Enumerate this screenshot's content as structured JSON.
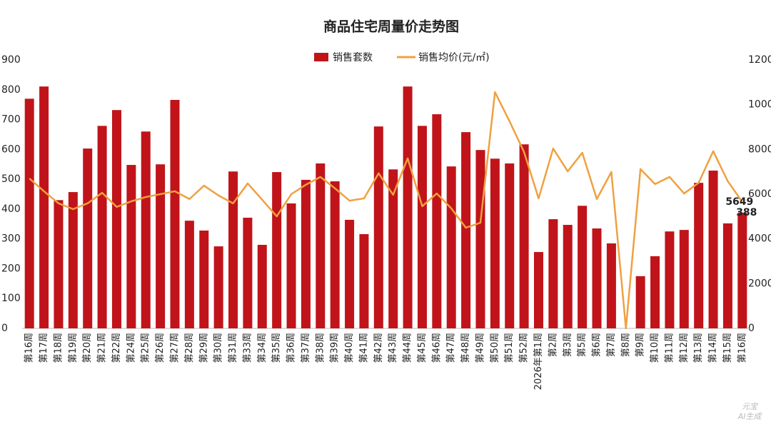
{
  "chart_data": {
    "type": "bar_line",
    "title": "商品住宅周量价走势图",
    "categories": [
      "第16周",
      "第17周",
      "第18周",
      "第19周",
      "第20周",
      "第21周",
      "第22周",
      "第24周",
      "第25周",
      "第26周",
      "第27周",
      "第28周",
      "第29周",
      "第30周",
      "第31周",
      "第33周",
      "第34周",
      "第35周",
      "第36周",
      "第37周",
      "第38周",
      "第39周",
      "第40周",
      "第41周",
      "第42周",
      "第43周",
      "第44周",
      "第45周",
      "第46周",
      "第47周",
      "第48周",
      "第49周",
      "第50周",
      "第51周",
      "第52周",
      "2026年第1周",
      "第2周",
      "第3周",
      "第5周",
      "第6周",
      "第7周",
      "第8周",
      "第9周",
      "第10周",
      "第11周",
      "第12周",
      "第13周",
      "第14周",
      "第15周",
      "第16周"
    ],
    "series": [
      {
        "name": "销售套数",
        "type": "bar",
        "color": "#c0141a",
        "values": [
          770,
          811,
          430,
          457,
          603,
          679,
          732,
          548,
          660,
          550,
          766,
          361,
          328,
          275,
          526,
          371,
          280,
          524,
          419,
          498,
          553,
          493,
          364,
          316,
          677,
          533,
          811,
          679,
          718,
          543,
          658,
          598,
          569,
          553,
          617,
          256,
          366,
          347,
          411,
          335,
          285,
          0,
          175,
          242,
          325,
          330,
          488,
          529,
          352,
          388
        ]
      },
      {
        "name": "销售均价(元/㎡)",
        "type": "line",
        "axis": "y2",
        "color": "#f0a040",
        "values": [
          6700,
          6130,
          5590,
          5330,
          5590,
          6060,
          5430,
          5680,
          5870,
          6000,
          6130,
          5780,
          6380,
          5940,
          5590,
          6480,
          5750,
          5010,
          6000,
          6420,
          6770,
          6260,
          5710,
          5810,
          6930,
          5970,
          7600,
          5460,
          6030,
          5360,
          4500,
          4720,
          10560,
          9260,
          7880,
          5810,
          8040,
          7020,
          7850,
          5780,
          6990,
          0,
          7120,
          6450,
          6770,
          6030,
          6510,
          7920,
          6580,
          5649
        ]
      }
    ],
    "ylim": [
      0,
      900
    ],
    "yticks": [
      0,
      100,
      200,
      300,
      400,
      500,
      600,
      700,
      800,
      900
    ],
    "y2lim": [
      0,
      12000
    ],
    "y2ticks": [
      0,
      2000,
      4000,
      6000,
      8000,
      10000,
      12000
    ],
    "legend": "top",
    "watermark": [
      "元宝",
      "AI生成"
    ]
  }
}
